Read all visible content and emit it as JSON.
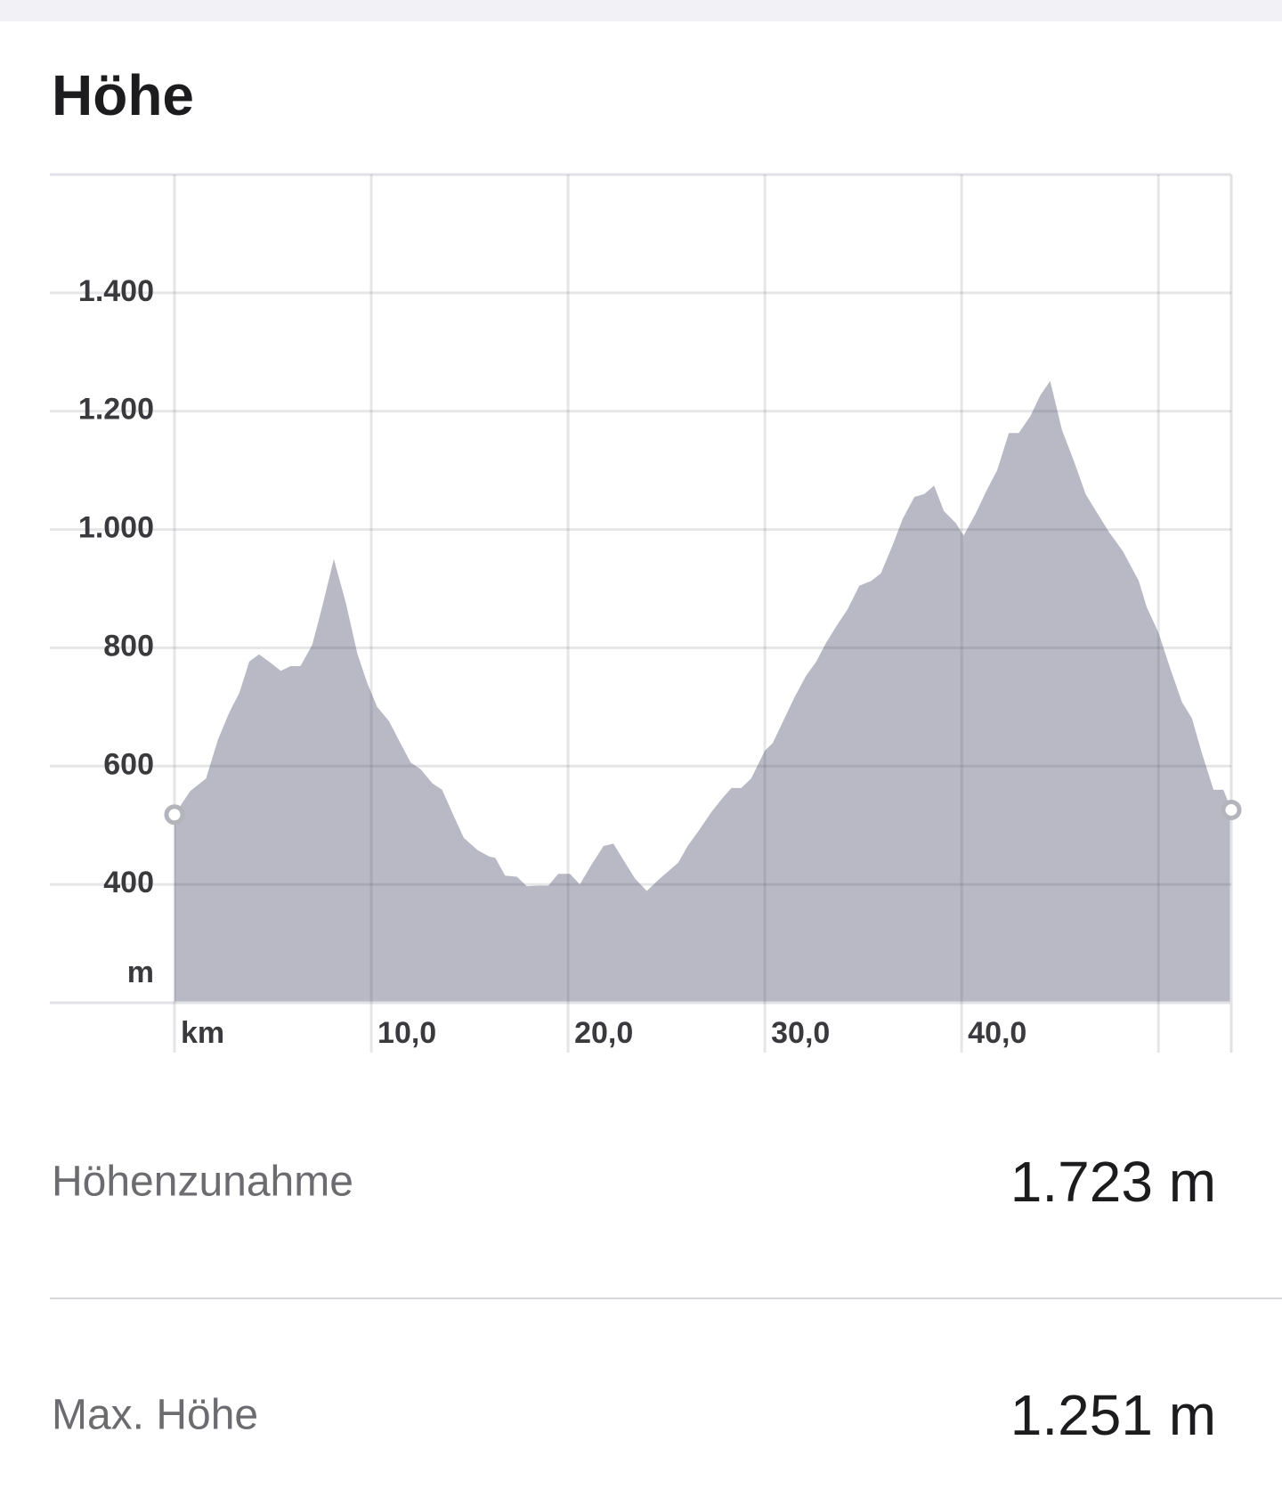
{
  "header": {
    "title": "Höhe"
  },
  "chart_data": {
    "type": "area",
    "color": "#b9b9c6",
    "xlabel": "km",
    "ylabel": "m",
    "x": [
      0,
      0.8,
      1.6,
      2.2,
      2.8,
      3.3,
      3.8,
      4.3,
      4.95,
      5.4,
      5.9,
      6.4,
      7.0,
      7.5,
      8.1,
      8.7,
      9.3,
      9.8,
      10.3,
      10.9,
      11.4,
      12.0,
      12.5,
      13.1,
      13.6,
      14.2,
      14.7,
      15.4,
      16.0,
      16.3,
      16.8,
      17.4,
      17.9,
      18.5,
      19.0,
      19.5,
      20.1,
      20.6,
      21.2,
      21.8,
      22.3,
      22.8,
      23.4,
      24.0,
      24.6,
      25.6,
      26.1,
      26.6,
      27.3,
      27.9,
      28.3,
      28.8,
      29.3,
      30.0,
      30.4,
      31.0,
      31.5,
      32.1,
      32.6,
      33.1,
      33.7,
      34.2,
      34.8,
      35.4,
      35.9,
      36.5,
      37.0,
      37.6,
      38.1,
      38.6,
      39.1,
      39.7,
      40.1,
      40.7,
      41.3,
      41.8,
      42.4,
      42.9,
      43.5,
      44.0,
      44.5,
      45.1,
      45.7,
      46.3,
      46.9,
      47.5,
      48.2,
      49.0,
      49.4,
      50.0,
      50.6,
      51.2,
      51.7,
      52.2,
      52.8,
      53.3,
      53.7
    ],
    "values": [
      518,
      558,
      579,
      644,
      692,
      724,
      777,
      789,
      773,
      761,
      769,
      769,
      805,
      869,
      950,
      877,
      789,
      740,
      700,
      676,
      644,
      606,
      595,
      571,
      560,
      515,
      479,
      458,
      447,
      445,
      415,
      413,
      397,
      398,
      398,
      418,
      418,
      400,
      434,
      465,
      469,
      442,
      410,
      389,
      408,
      437,
      466,
      489,
      523,
      548,
      563,
      563,
      579,
      626,
      639,
      681,
      716,
      753,
      776,
      808,
      840,
      865,
      905,
      913,
      926,
      974,
      1018,
      1055,
      1060,
      1074,
      1031,
      1011,
      990,
      1026,
      1068,
      1100,
      1163,
      1163,
      1192,
      1227,
      1251,
      1168,
      1116,
      1060,
      1027,
      995,
      963,
      913,
      869,
      826,
      765,
      708,
      681,
      623,
      560,
      560,
      526
    ],
    "xlim": [
      0,
      53.7
    ],
    "ylim": [
      200,
      1600
    ],
    "xticks": [
      {
        "value": 0,
        "label": "km"
      },
      {
        "value": 10,
        "label": "10,0"
      },
      {
        "value": 20,
        "label": "20,0"
      },
      {
        "value": 30,
        "label": "30,0"
      },
      {
        "value": 40,
        "label": "40,0"
      },
      {
        "value": 50,
        "label": null
      }
    ],
    "yticks": [
      400,
      600,
      800,
      {
        "value": 1000,
        "label": "1.000"
      },
      {
        "value": 1200,
        "label": "1.200"
      },
      {
        "value": 1400,
        "label": "1.400"
      }
    ],
    "grid": true
  },
  "stats": [
    {
      "label": "Höhenzunahme",
      "value": "1.723 m"
    },
    {
      "label": "Max. Höhe",
      "value": "1.251 m"
    }
  ]
}
